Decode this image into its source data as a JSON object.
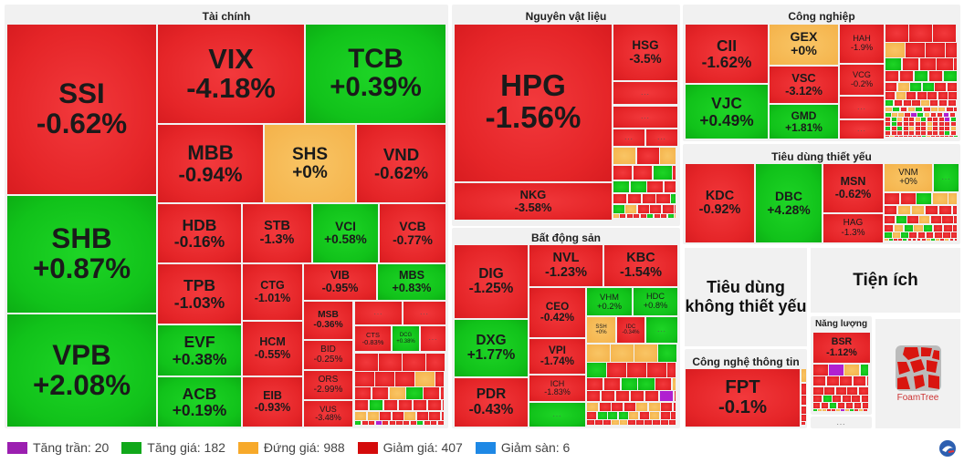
{
  "more_label": "...",
  "colors": {
    "ceiling": "#9b1fb0",
    "up": "#11a81a",
    "flat": "#f7a92a",
    "down": "#d40b0b",
    "floor": "#1e88e5"
  },
  "sectors": [
    {
      "title": "Tài chính",
      "tiles": [
        {
          "ticker": "SSI",
          "change": "-0.62%",
          "status": "r"
        },
        {
          "ticker": "SHB",
          "change": "+0.87%",
          "status": "g"
        },
        {
          "ticker": "VPB",
          "change": "+2.08%",
          "status": "g"
        },
        {
          "ticker": "VIX",
          "change": "-4.18%",
          "status": "r"
        },
        {
          "ticker": "TCB",
          "change": "+0.39%",
          "status": "g"
        },
        {
          "ticker": "MBB",
          "change": "-0.94%",
          "status": "r"
        },
        {
          "ticker": "SHS",
          "change": "+0%",
          "status": "y"
        },
        {
          "ticker": "VND",
          "change": "-0.62%",
          "status": "r"
        },
        {
          "ticker": "HDB",
          "change": "-0.16%",
          "status": "r"
        },
        {
          "ticker": "STB",
          "change": "-1.3%",
          "status": "r"
        },
        {
          "ticker": "VCI",
          "change": "+0.58%",
          "status": "g"
        },
        {
          "ticker": "VCB",
          "change": "-0.77%",
          "status": "r"
        },
        {
          "ticker": "TPB",
          "change": "-1.03%",
          "status": "r"
        },
        {
          "ticker": "CTG",
          "change": "-1.01%",
          "status": "r"
        },
        {
          "ticker": "HCM",
          "change": "-0.55%",
          "status": "r"
        },
        {
          "ticker": "EIB",
          "change": "-0.93%",
          "status": "r"
        },
        {
          "ticker": "EVF",
          "change": "+0.38%",
          "status": "g"
        },
        {
          "ticker": "ACB",
          "change": "+0.19%",
          "status": "g"
        },
        {
          "ticker": "VIB",
          "change": "-0.95%",
          "status": "r"
        },
        {
          "ticker": "MBS",
          "change": "+0.83%",
          "status": "g"
        },
        {
          "ticker": "MSB",
          "change": "-0.36%",
          "status": "r"
        },
        {
          "ticker": "BID",
          "change": "-0.25%",
          "status": "r"
        },
        {
          "ticker": "ORS",
          "change": "-2.99%",
          "status": "r"
        },
        {
          "ticker": "VUS",
          "change": "-3.48%",
          "status": "r"
        },
        {
          "ticker": "CTS",
          "change": "-0.83%",
          "status": "r"
        },
        {
          "ticker": "DCG",
          "change": "+0.38%",
          "status": "g"
        }
      ]
    },
    {
      "title": "Nguyên vật liệu",
      "tiles": [
        {
          "ticker": "HPG",
          "change": "-1.56%",
          "status": "r"
        },
        {
          "ticker": "NKG",
          "change": "-3.58%",
          "status": "r"
        },
        {
          "ticker": "HSG",
          "change": "-3.5%",
          "status": "r"
        }
      ]
    },
    {
      "title": "Bất động sản",
      "tiles": [
        {
          "ticker": "DIG",
          "change": "-1.25%",
          "status": "r"
        },
        {
          "ticker": "DXG",
          "change": "+1.77%",
          "status": "g"
        },
        {
          "ticker": "PDR",
          "change": "-0.43%",
          "status": "r"
        },
        {
          "ticker": "NVL",
          "change": "-1.23%",
          "status": "r"
        },
        {
          "ticker": "KBC",
          "change": "-1.54%",
          "status": "r"
        },
        {
          "ticker": "CEO",
          "change": "-0.42%",
          "status": "r"
        },
        {
          "ticker": "VPI",
          "change": "-1.74%",
          "status": "r"
        },
        {
          "ticker": "ICH",
          "change": "-1.83%",
          "status": "r"
        },
        {
          "ticker": "VHM",
          "change": "+0.2%",
          "status": "g"
        },
        {
          "ticker": "HDC",
          "change": "+0.8%",
          "status": "g"
        },
        {
          "ticker": "SSH",
          "change": "+0%",
          "status": "y"
        },
        {
          "ticker": "IDC",
          "change": "-0.34%",
          "status": "r"
        }
      ]
    },
    {
      "title": "Công nghiệp",
      "tiles": [
        {
          "ticker": "CII",
          "change": "-1.62%",
          "status": "r"
        },
        {
          "ticker": "VJC",
          "change": "+0.49%",
          "status": "g"
        },
        {
          "ticker": "GEX",
          "change": "+0%",
          "status": "y"
        },
        {
          "ticker": "VSC",
          "change": "-3.12%",
          "status": "r"
        },
        {
          "ticker": "GMD",
          "change": "+1.81%",
          "status": "g"
        },
        {
          "ticker": "HAH",
          "change": "-1.9%",
          "status": "r"
        },
        {
          "ticker": "VCG",
          "change": "-0.2%",
          "status": "r"
        }
      ]
    },
    {
      "title": "Tiêu dùng thiết yếu",
      "tiles": [
        {
          "ticker": "KDC",
          "change": "-0.92%",
          "status": "r"
        },
        {
          "ticker": "DBC",
          "change": "+4.28%",
          "status": "g"
        },
        {
          "ticker": "MSN",
          "change": "-0.62%",
          "status": "r"
        },
        {
          "ticker": "HAG",
          "change": "-1.3%",
          "status": "r"
        },
        {
          "ticker": "VNM",
          "change": "+0%",
          "status": "y"
        }
      ]
    },
    {
      "title": "Công nghệ thông tin",
      "tiles": [
        {
          "ticker": "FPT",
          "change": "-0.1%",
          "status": "r"
        }
      ]
    },
    {
      "title": "Năng lượng",
      "tiles": [
        {
          "ticker": "BSR",
          "change": "-1.12%",
          "status": "r"
        }
      ]
    }
  ],
  "collapsed_sectors": {
    "consumer_discretionary": "Tiêu dùng không thiết yếu",
    "utilities": "Tiện ích"
  },
  "foamtree_label": "FoamTree",
  "legend": [
    {
      "label": "Tăng trần: 20",
      "color": "#9b1fb0"
    },
    {
      "label": "Tăng giá: 182",
      "color": "#11a81a"
    },
    {
      "label": "Đứng giá: 988",
      "color": "#f7a92a"
    },
    {
      "label": "Giảm giá: 407",
      "color": "#d40b0b"
    },
    {
      "label": "Giảm sàn: 6",
      "color": "#1e88e5"
    }
  ]
}
